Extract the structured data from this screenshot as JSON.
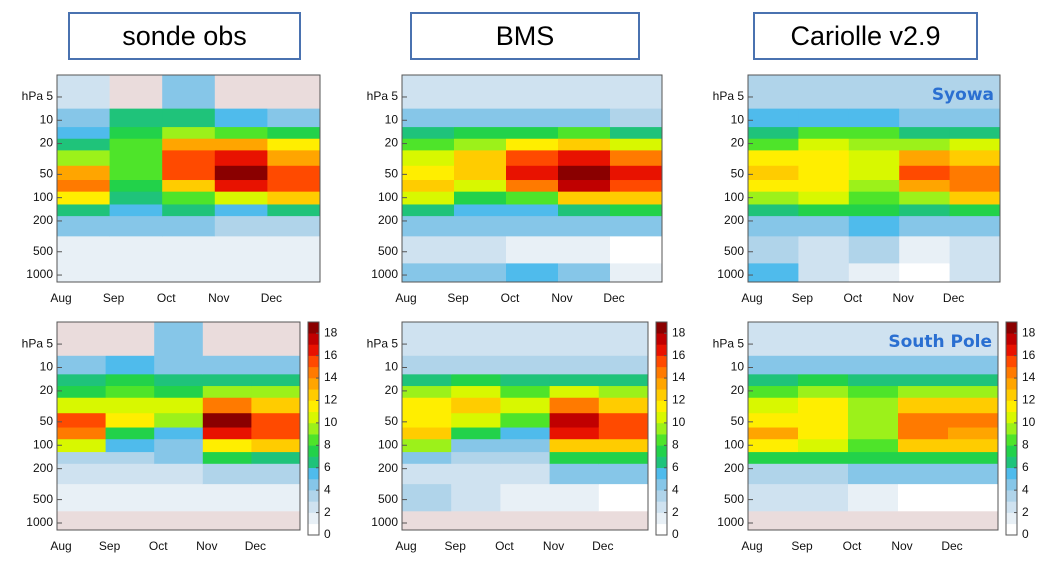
{
  "column_titles": [
    "sonde obs",
    "BMS",
    "Cariolle v2.9"
  ],
  "colorscale": {
    "zlim": [
      0,
      19
    ],
    "ticks": [
      0,
      2,
      4,
      6,
      8,
      10,
      12,
      14,
      16,
      18
    ],
    "missing_color": "#eadcdc",
    "colors": [
      "#ffffff",
      "#e8f0f6",
      "#cfe2f0",
      "#b0d4ea",
      "#86c6e8",
      "#4fbbec",
      "#1fc37a",
      "#22d24a",
      "#4ee42a",
      "#9cf11a",
      "#d8f800",
      "#ffee00",
      "#ffcc00",
      "#ffa500",
      "#ff7a00",
      "#ff4a00",
      "#e81200",
      "#c00000",
      "#8a0000"
    ]
  },
  "chart_data": [
    {
      "type": "heatmap",
      "x": [
        "Aug",
        "Sep",
        "Oct",
        "Nov",
        "Dec"
      ],
      "y": [
        5,
        10,
        15,
        20,
        30,
        50,
        70,
        100,
        150,
        200,
        500,
        1000
      ],
      "ylim": [
        2.6,
        1230
      ],
      "log_y": true,
      "yticks": [
        {
          "value": 5,
          "label": "hPa 5"
        },
        10,
        20,
        50,
        100,
        200,
        500,
        1000
      ],
      "colorbar": false,
      "values": [
        [
          2,
          4,
          5,
          6,
          9,
          13,
          14,
          11,
          6,
          4,
          1,
          1
        ],
        [
          null,
          6,
          7,
          8,
          8,
          8,
          7,
          6,
          5,
          4,
          1,
          1
        ],
        [
          4,
          6,
          9,
          13,
          15,
          15,
          12,
          8,
          6,
          4,
          1,
          1
        ],
        [
          null,
          5,
          8,
          13,
          16,
          18,
          16,
          10,
          5,
          3,
          1,
          1
        ],
        [
          null,
          4,
          7,
          11,
          13,
          15,
          15,
          12,
          6,
          3,
          1,
          1
        ]
      ]
    },
    {
      "type": "heatmap",
      "x": [
        "Aug",
        "Sep",
        "Oct",
        "Nov",
        "Dec"
      ],
      "y": [
        5,
        10,
        15,
        20,
        30,
        50,
        70,
        100,
        150,
        200,
        500,
        1000
      ],
      "ylim": [
        2.6,
        1230
      ],
      "log_y": true,
      "yticks": [
        {
          "value": 5,
          "label": "hPa 5"
        },
        10,
        20,
        50,
        100,
        200,
        500,
        1000
      ],
      "colorbar": false,
      "values": [
        [
          2,
          4,
          6,
          8,
          10,
          11,
          12,
          10,
          6,
          4,
          2,
          4
        ],
        [
          2,
          4,
          7,
          9,
          12,
          12,
          10,
          7,
          5,
          4,
          2,
          4
        ],
        [
          2,
          4,
          7,
          11,
          15,
          16,
          14,
          8,
          5,
          4,
          1,
          5
        ],
        [
          2,
          4,
          8,
          12,
          16,
          18,
          17,
          12,
          6,
          4,
          1,
          4
        ],
        [
          2,
          3,
          6,
          10,
          14,
          16,
          15,
          12,
          7,
          4,
          0,
          1
        ]
      ]
    },
    {
      "type": "heatmap",
      "x": [
        "Aug",
        "Sep",
        "Oct",
        "Nov",
        "Dec"
      ],
      "y": [
        5,
        10,
        15,
        20,
        30,
        50,
        70,
        100,
        150,
        200,
        500,
        1000
      ],
      "ylim": [
        2.6,
        1230
      ],
      "log_y": true,
      "yticks": [
        {
          "value": 5,
          "label": "hPa 5"
        },
        10,
        20,
        50,
        100,
        200,
        500,
        1000
      ],
      "colorbar": false,
      "annotation": "Syowa",
      "values": [
        [
          3,
          5,
          6,
          8,
          11,
          12,
          11,
          9,
          6,
          4,
          3,
          5
        ],
        [
          3,
          5,
          8,
          10,
          11,
          11,
          11,
          10,
          7,
          4,
          2,
          2
        ],
        [
          3,
          5,
          8,
          9,
          10,
          10,
          9,
          8,
          7,
          5,
          3,
          1
        ],
        [
          3,
          4,
          6,
          9,
          13,
          15,
          13,
          9,
          6,
          4,
          1,
          0
        ],
        [
          3,
          4,
          6,
          10,
          12,
          14,
          14,
          12,
          7,
          4,
          2,
          2
        ]
      ]
    },
    {
      "type": "heatmap",
      "x": [
        "Aug",
        "Sep",
        "Oct",
        "Nov",
        "Dec"
      ],
      "y": [
        5,
        10,
        15,
        20,
        30,
        50,
        70,
        100,
        150,
        200,
        500,
        1000
      ],
      "ylim": [
        2.6,
        1230
      ],
      "log_y": true,
      "yticks": [
        {
          "value": 5,
          "label": "hPa 5"
        },
        10,
        20,
        50,
        100,
        200,
        500,
        1000
      ],
      "colorbar": true,
      "values": [
        [
          null,
          4,
          6,
          7,
          10,
          15,
          14,
          10,
          3,
          2,
          1,
          null
        ],
        [
          null,
          5,
          7,
          8,
          10,
          11,
          7,
          5,
          3,
          2,
          1,
          null
        ],
        [
          4,
          4,
          6,
          7,
          10,
          9,
          5,
          4,
          4,
          2,
          1,
          null
        ],
        [
          null,
          4,
          6,
          9,
          14,
          18,
          16,
          11,
          7,
          3,
          1,
          null
        ],
        [
          null,
          4,
          6,
          9,
          12,
          15,
          15,
          12,
          6,
          3,
          1,
          null
        ]
      ]
    },
    {
      "type": "heatmap",
      "x": [
        "Aug",
        "Sep",
        "Oct",
        "Nov",
        "Dec"
      ],
      "y": [
        5,
        10,
        15,
        20,
        30,
        50,
        70,
        100,
        150,
        200,
        500,
        1000
      ],
      "ylim": [
        2.6,
        1230
      ],
      "log_y": true,
      "yticks": [
        {
          "value": 5,
          "label": "hPa 5"
        },
        10,
        20,
        50,
        100,
        200,
        500,
        1000
      ],
      "colorbar": true,
      "values": [
        [
          2,
          3,
          6,
          9,
          11,
          11,
          12,
          9,
          4,
          2,
          3,
          null
        ],
        [
          2,
          3,
          7,
          10,
          12,
          10,
          7,
          4,
          3,
          2,
          2,
          null
        ],
        [
          2,
          3,
          6,
          8,
          10,
          8,
          5,
          4,
          3,
          2,
          1,
          null
        ],
        [
          2,
          3,
          6,
          10,
          14,
          17,
          16,
          12,
          7,
          4,
          1,
          null
        ],
        [
          2,
          3,
          6,
          9,
          12,
          15,
          15,
          12,
          7,
          4,
          0,
          null
        ]
      ]
    },
    {
      "type": "heatmap",
      "x": [
        "Aug",
        "Sep",
        "Oct",
        "Nov",
        "Dec"
      ],
      "y": [
        5,
        10,
        15,
        20,
        30,
        50,
        70,
        100,
        150,
        200,
        500,
        1000
      ],
      "ylim": [
        2.6,
        1230
      ],
      "log_y": true,
      "yticks": [
        {
          "value": 5,
          "label": "hPa 5"
        },
        10,
        20,
        50,
        100,
        200,
        500,
        1000
      ],
      "colorbar": true,
      "annotation": "South Pole",
      "values": [
        [
          2,
          4,
          6,
          8,
          10,
          11,
          13,
          11,
          7,
          3,
          2,
          null
        ],
        [
          2,
          4,
          7,
          9,
          11,
          11,
          11,
          10,
          7,
          3,
          2,
          null
        ],
        [
          2,
          4,
          6,
          8,
          9,
          9,
          9,
          8,
          7,
          4,
          1,
          null
        ],
        [
          2,
          4,
          6,
          9,
          12,
          14,
          14,
          12,
          7,
          4,
          0,
          null
        ],
        [
          2,
          4,
          6,
          9,
          12,
          14,
          13,
          12,
          7,
          4,
          0,
          null
        ]
      ]
    }
  ]
}
